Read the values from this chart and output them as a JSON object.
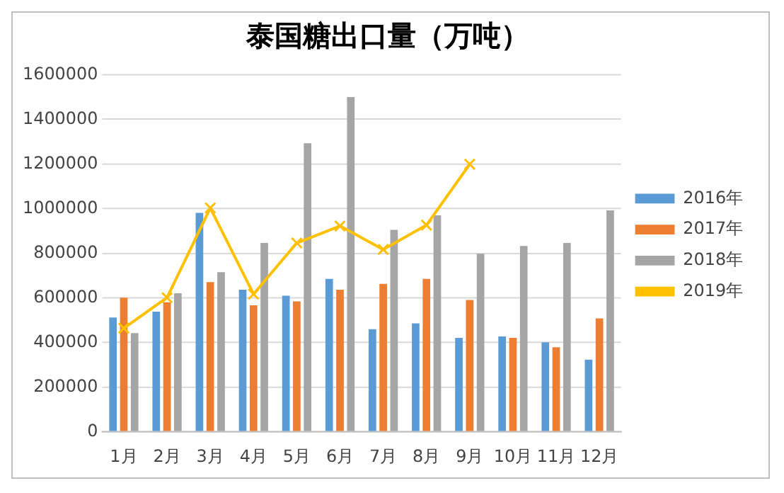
{
  "chart_data": {
    "type": "bar",
    "title": "泰国糖出口量（万吨）",
    "categories": [
      "1月",
      "2月",
      "3月",
      "4月",
      "5月",
      "6月",
      "7月",
      "8月",
      "9月",
      "10月",
      "11月",
      "12月"
    ],
    "series": [
      {
        "name": "2016年",
        "color": "#5b9bd5",
        "values": [
          512000,
          538000,
          981000,
          637000,
          610000,
          685000,
          460000,
          486000,
          421000,
          427000,
          401000,
          323000
        ]
      },
      {
        "name": "2017年",
        "color": "#ed7d31",
        "values": [
          601000,
          580000,
          671000,
          567000,
          584000,
          637000,
          663000,
          685000,
          591000,
          421000,
          379000,
          508000
        ]
      },
      {
        "name": "2018年",
        "color": "#a5a5a5",
        "values": [
          442000,
          621000,
          715000,
          846000,
          1293000,
          1500000,
          905000,
          970000,
          798000,
          833000,
          846000,
          992000
        ]
      },
      {
        "name": "2019年",
        "color": "#ffc000",
        "type": "line",
        "marker": "cross",
        "values": [
          464000,
          601000,
          1003000,
          617000,
          846000,
          922000,
          817000,
          926000,
          1199000,
          null,
          null,
          null
        ]
      }
    ],
    "ylim": [
      0,
      1600000
    ],
    "yticks": [
      0,
      200000,
      400000,
      600000,
      800000,
      1000000,
      1200000,
      1400000,
      1600000
    ],
    "grid": "y",
    "legend": "right"
  }
}
